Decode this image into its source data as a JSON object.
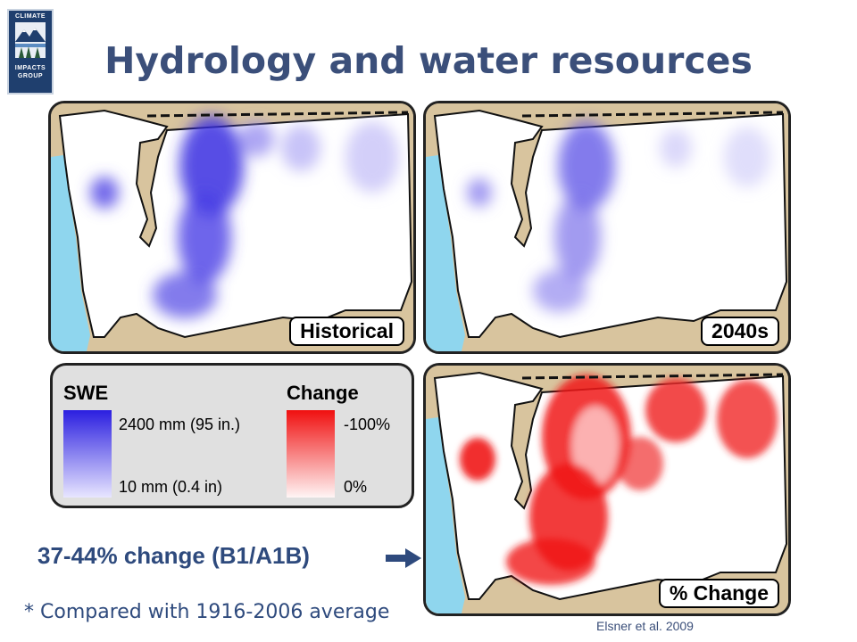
{
  "logo": {
    "line1": "CLIMATE",
    "line2": "IMPACTS",
    "line3": "GROUP",
    "icon": "mountain-forest-emblem"
  },
  "title": "Hydrology and water resources",
  "maps": {
    "historical": {
      "label": "Historical"
    },
    "future": {
      "label": "2040s"
    },
    "change": {
      "label": "% Change"
    }
  },
  "legend": {
    "swe": {
      "heading": "SWE",
      "max_label": "2400 mm (95 in.)",
      "min_label": "10 mm (0.4 in)",
      "color_max": "#2b1fe0",
      "color_min": "#e8e6ff"
    },
    "change": {
      "heading": "Change",
      "max_label": "-100%",
      "min_label": "0%",
      "color_max": "#f01010",
      "color_min": "#fff5f5"
    }
  },
  "callout": {
    "text": "37-44% change (B1/A1B)",
    "icon": "right-arrow-icon"
  },
  "footnote": "* Compared with 1916-2006 average",
  "citation": "Elsner et al. 2009",
  "colors": {
    "title": "#3b4f7a",
    "land_outside": "#d8c49e",
    "water": "#8fd6ee",
    "snow": "#3a2fe0",
    "change": "#f01818"
  }
}
